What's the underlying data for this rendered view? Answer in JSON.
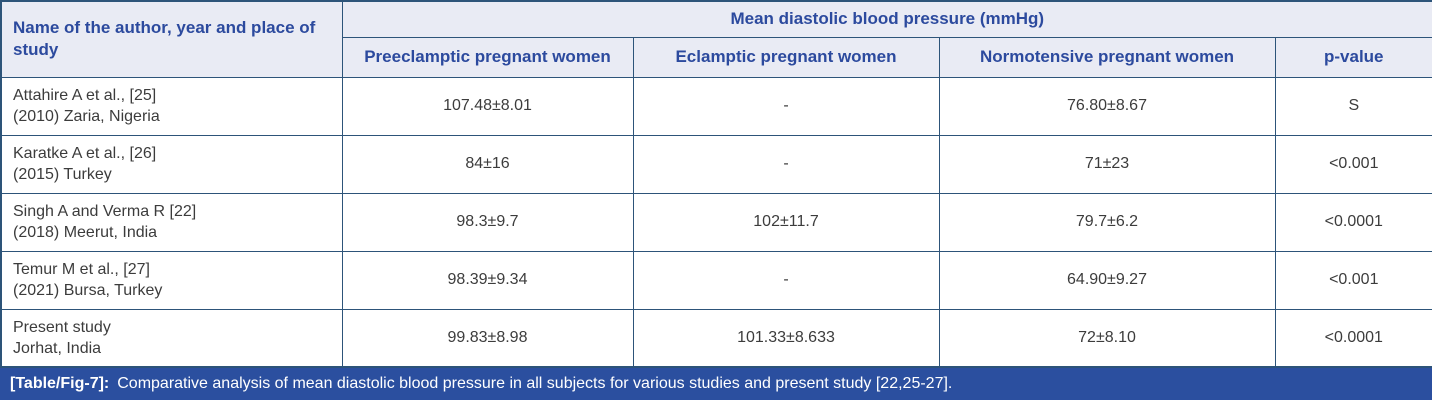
{
  "table": {
    "corner_header": "Name of the author, year and place of study",
    "group_header": "Mean diastolic blood pressure (mmHg)",
    "sub_headers": [
      "Preeclamptic pregnant women",
      "Eclamptic pregnant women",
      "Normotensive pregnant women",
      "p-value"
    ],
    "rows": [
      {
        "study_line1": "Attahire A et al., [25]",
        "study_line2": "(2010) Zaria, Nigeria",
        "preeclamptic": "107.48±8.01",
        "eclamptic": "-",
        "normotensive": "76.80±8.67",
        "p_value": "S"
      },
      {
        "study_line1": "Karatke A et al., [26]",
        "study_line2": "(2015) Turkey",
        "preeclamptic": "84±16",
        "eclamptic": "-",
        "normotensive": "71±23",
        "p_value": "<0.001"
      },
      {
        "study_line1": "Singh A and Verma R [22]",
        "study_line2": "(2018) Meerut, India",
        "preeclamptic": "98.3±9.7",
        "eclamptic": "102±11.7",
        "normotensive": "79.7±6.2",
        "p_value": "<0.0001"
      },
      {
        "study_line1": "Temur M et al., [27]",
        "study_line2": "(2021) Bursa, Turkey",
        "preeclamptic": "98.39±9.34",
        "eclamptic": "-",
        "normotensive": "64.90±9.27",
        "p_value": "<0.001"
      },
      {
        "study_line1": "Present study",
        "study_line2": "Jorhat, India",
        "preeclamptic": "99.83±8.98",
        "eclamptic": "101.33±8.633",
        "normotensive": "72±8.10",
        "p_value": "<0.0001"
      }
    ]
  },
  "caption": {
    "label": "[Table/Fig-7]:",
    "text": "Comparative analysis of mean diastolic blood pressure in all subjects for various studies and present study [22,25-27]."
  },
  "colors": {
    "border": "#2d5479",
    "header_bg": "#e9ebf4",
    "header_text": "#2c4a9e",
    "body_text": "#3c3c3c",
    "caption_bg": "#2b4f9f",
    "caption_text": "#ffffff"
  }
}
